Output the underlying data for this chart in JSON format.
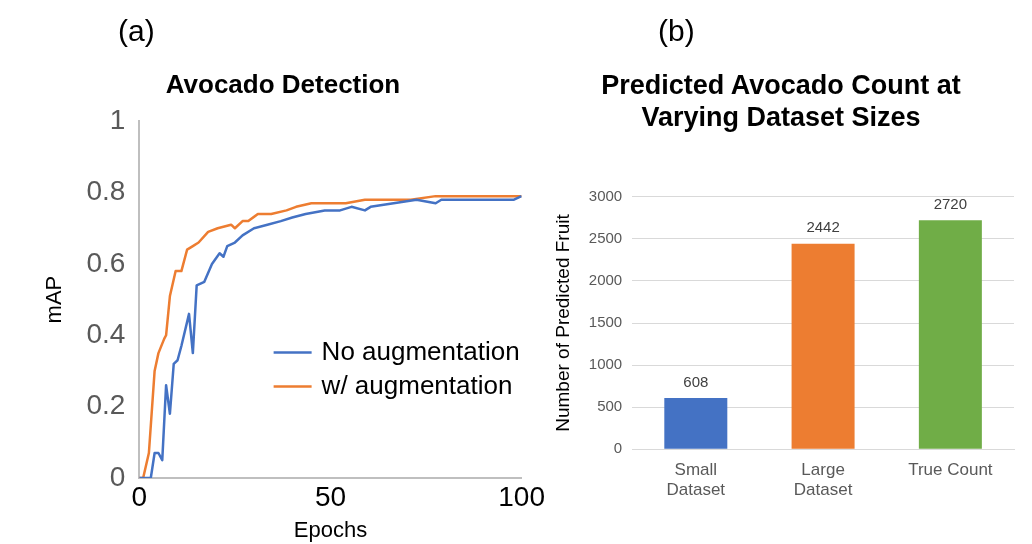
{
  "chart_data": [
    {
      "type": "line",
      "title": "Avocado Detection",
      "xlabel": "Epochs",
      "ylabel": "mAP",
      "annotations": [
        "(a)"
      ],
      "xlim": [
        0,
        100
      ],
      "xticks": [
        0,
        50,
        100
      ],
      "ylim": [
        0,
        1
      ],
      "yticks": [
        0,
        0.2,
        0.4,
        0.6,
        0.8,
        1
      ],
      "grid": false,
      "legend": "right",
      "marker": "none",
      "series": [
        {
          "name": "No augmentation",
          "color": "#4472c4",
          "x": [
            0,
            3,
            4,
            5,
            6,
            7,
            8,
            9,
            10,
            11,
            13,
            14,
            15,
            17,
            19,
            21,
            22,
            23,
            25,
            27,
            30,
            33.5,
            37,
            40,
            43.5,
            48.5,
            52.5,
            55.5,
            59,
            60.5,
            66.5,
            72.5,
            77.5,
            79,
            85,
            93.5,
            98,
            100
          ],
          "values": [
            0,
            0,
            0.07,
            0.07,
            0.05,
            0.26,
            0.18,
            0.32,
            0.33,
            0.37,
            0.46,
            0.35,
            0.54,
            0.55,
            0.6,
            0.63,
            0.62,
            0.65,
            0.66,
            0.68,
            0.7,
            0.71,
            0.72,
            0.73,
            0.74,
            0.75,
            0.75,
            0.76,
            0.75,
            0.76,
            0.77,
            0.78,
            0.77,
            0.78,
            0.78,
            0.78,
            0.78,
            0.79
          ]
        },
        {
          "name": "w/ augmentation",
          "color": "#ed7d31",
          "x": [
            0,
            1,
            2.5,
            4,
            5,
            6.5,
            7,
            8,
            9.5,
            11,
            12.5,
            14,
            15.5,
            18,
            20.5,
            24,
            25,
            27,
            28.5,
            31,
            34.5,
            38.5,
            41,
            45,
            50,
            54,
            59,
            64,
            71,
            77.5,
            85,
            92,
            100
          ],
          "values": [
            0,
            0,
            0.07,
            0.3,
            0.35,
            0.39,
            0.4,
            0.51,
            0.58,
            0.58,
            0.64,
            0.65,
            0.66,
            0.69,
            0.7,
            0.71,
            0.7,
            0.72,
            0.72,
            0.74,
            0.74,
            0.75,
            0.76,
            0.77,
            0.77,
            0.77,
            0.78,
            0.78,
            0.78,
            0.79,
            0.79,
            0.79,
            0.79
          ]
        }
      ]
    },
    {
      "type": "bar",
      "title": "Predicted Avocado Count at Varying Dataset Sizes",
      "ylabel": "Number of Predicted Fruit",
      "annotations": [
        "(b)"
      ],
      "categories": [
        "Small Dataset",
        "Large Dataset",
        "True Count"
      ],
      "values": [
        608,
        2442,
        2720
      ],
      "colors": [
        "#4472c4",
        "#ed7d31",
        "#70ad47"
      ],
      "ylim": [
        0,
        3000
      ],
      "yticks": [
        0,
        500,
        1000,
        1500,
        2000,
        2500,
        3000
      ],
      "grid": "y",
      "data_labels": true
    }
  ]
}
